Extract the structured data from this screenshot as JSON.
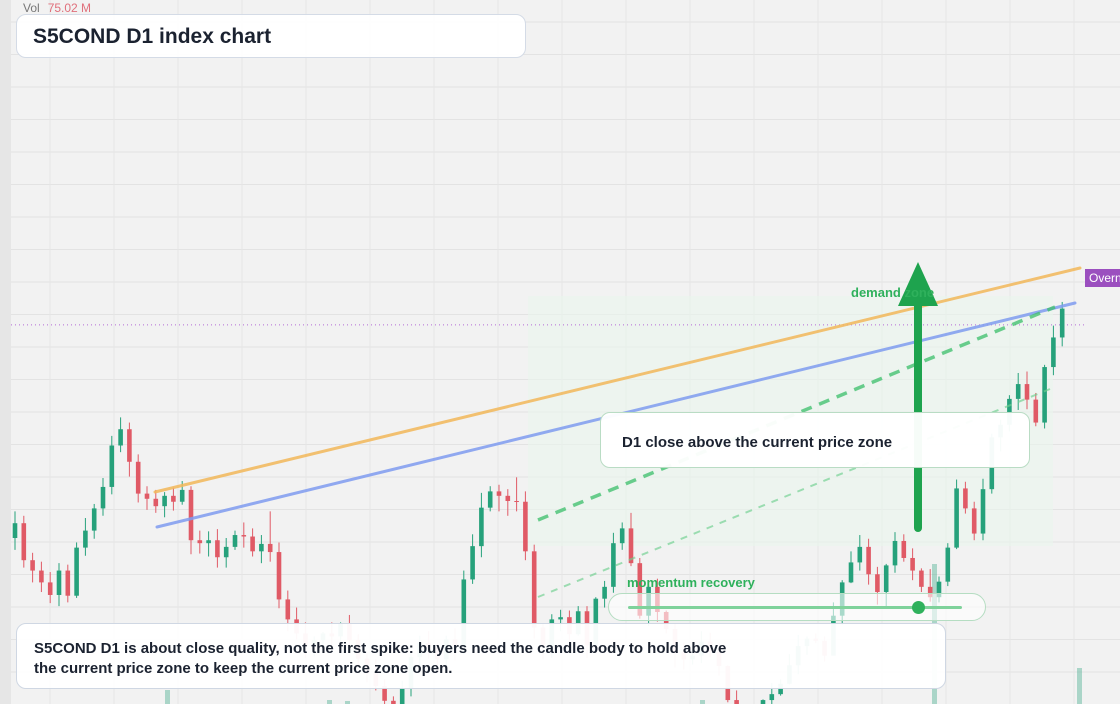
{
  "title": "S5COND D1 index chart",
  "volume": {
    "label": "Vol",
    "value": "75.02 M"
  },
  "price_tag": "Overnight",
  "zone_label": "demand zone",
  "note": "D1 close above the current price zone",
  "momentum": {
    "label": "momentum recovery",
    "level": 0.87
  },
  "summary": "S5COND D1 is about close quality, not the first spike: buyers need the candle body to hold above the current price zone to keep the current price zone open.",
  "colors": {
    "up": "#26a17b",
    "down": "#e05a66",
    "background": "#f2f2f2",
    "ma_fast": "#f2b85a",
    "ma_slow": "#7f9cf0",
    "accent": "#1ea34e",
    "price_line": "#b46bd6"
  },
  "chart_data": {
    "type": "candlestick",
    "timeframe": "D1",
    "x_count": 124,
    "y_range": [
      0,
      100
    ],
    "current_price": 58.8,
    "candles": [
      [
        30.0,
        32.0,
        33.6,
        28.4
      ],
      [
        32.0,
        27.0,
        33.0,
        26.0
      ],
      [
        27.0,
        25.6,
        28.0,
        24.0
      ],
      [
        25.6,
        24.0,
        26.8,
        22.7
      ],
      [
        24.0,
        22.3,
        25.4,
        21.2
      ],
      [
        22.3,
        25.6,
        26.6,
        20.8
      ],
      [
        25.6,
        22.2,
        26.4,
        21.3
      ],
      [
        22.2,
        28.7,
        29.4,
        21.9
      ],
      [
        28.7,
        31.0,
        32.7,
        27.6
      ],
      [
        31.0,
        34.0,
        34.6,
        29.9
      ],
      [
        34.0,
        36.9,
        38.1,
        33.0
      ],
      [
        36.9,
        42.5,
        43.8,
        35.9
      ],
      [
        42.5,
        44.7,
        46.3,
        41.6
      ],
      [
        44.7,
        40.3,
        45.6,
        38.3
      ],
      [
        40.3,
        36.0,
        41.3,
        34.8
      ],
      [
        36.0,
        35.3,
        37.0,
        33.8
      ],
      [
        35.3,
        34.3,
        36.5,
        33.4
      ],
      [
        34.3,
        35.7,
        36.2,
        32.8
      ],
      [
        35.7,
        34.9,
        36.8,
        33.7
      ],
      [
        34.9,
        36.5,
        37.7,
        34.5
      ],
      [
        36.5,
        29.7,
        37.0,
        27.8
      ],
      [
        29.7,
        29.3,
        31.0,
        27.9
      ],
      [
        29.3,
        29.7,
        30.9,
        27.5
      ],
      [
        29.7,
        27.4,
        31.2,
        26.0
      ],
      [
        27.4,
        28.8,
        30.0,
        26.0
      ],
      [
        28.8,
        30.4,
        31.0,
        28.4
      ],
      [
        30.4,
        30.2,
        32.1,
        28.7
      ],
      [
        30.2,
        28.2,
        31.3,
        27.5
      ],
      [
        28.2,
        29.2,
        30.4,
        26.6
      ],
      [
        29.2,
        28.1,
        33.6,
        26.8
      ],
      [
        28.1,
        21.7,
        29.4,
        20.5
      ],
      [
        21.7,
        19.0,
        22.9,
        17.4
      ],
      [
        19.0,
        17.1,
        20.6,
        16.3
      ],
      [
        17.1,
        15.4,
        18.6,
        13.8
      ],
      [
        15.4,
        16.2,
        16.7,
        14.0
      ],
      [
        16.2,
        17.1,
        17.3,
        15.6
      ],
      [
        17.1,
        16.7,
        18.6,
        15.0
      ],
      [
        16.7,
        18.5,
        18.6,
        15.9
      ],
      [
        18.5,
        16.2,
        19.6,
        15.0
      ],
      [
        16.2,
        13.7,
        17.0,
        12.5
      ],
      [
        13.7,
        11.7,
        14.4,
        10.5
      ],
      [
        11.7,
        10.0,
        13.6,
        9.4
      ],
      [
        10.0,
        8.0,
        10.9,
        6.5
      ],
      [
        8.0,
        5.7,
        8.6,
        4.4
      ],
      [
        5.7,
        9.7,
        10.7,
        4.8
      ],
      [
        9.7,
        13.9,
        14.4,
        8.6
      ],
      [
        13.9,
        15.8,
        16.8,
        12.1
      ],
      [
        15.8,
        15.2,
        17.4,
        13.7
      ],
      [
        15.2,
        13.6,
        15.8,
        12.0
      ],
      [
        13.6,
        16.3,
        16.8,
        12.0
      ],
      [
        16.3,
        15.3,
        17.8,
        13.5
      ],
      [
        15.3,
        24.4,
        25.6,
        14.3
      ],
      [
        24.4,
        28.9,
        30.5,
        23.8
      ],
      [
        28.9,
        34.1,
        36.1,
        27.4
      ],
      [
        34.1,
        36.3,
        37.0,
        33.6
      ],
      [
        36.3,
        35.7,
        37.2,
        33.6
      ],
      [
        35.7,
        35.0,
        36.6,
        33.0
      ],
      [
        35.0,
        34.9,
        38.2,
        33.6
      ],
      [
        34.9,
        28.2,
        36.3,
        27.0
      ],
      [
        28.2,
        17.9,
        29.1,
        16.4
      ],
      [
        17.9,
        15.3,
        18.5,
        13.6
      ],
      [
        15.3,
        19.0,
        19.7,
        13.8
      ],
      [
        19.0,
        19.3,
        20.3,
        17.4
      ],
      [
        19.3,
        17.0,
        20.2,
        15.5
      ],
      [
        17.0,
        20.1,
        20.8,
        16.8
      ],
      [
        20.1,
        15.5,
        20.8,
        13.8
      ],
      [
        15.5,
        21.8,
        22.0,
        14.7
      ],
      [
        21.8,
        23.4,
        24.2,
        20.6
      ],
      [
        23.4,
        29.3,
        30.7,
        22.6
      ],
      [
        29.3,
        31.3,
        32.1,
        28.4
      ],
      [
        31.3,
        26.6,
        33.4,
        26.2
      ],
      [
        26.6,
        19.5,
        27.3,
        19.1
      ],
      [
        19.5,
        23.4,
        23.6,
        18.1
      ],
      [
        23.4,
        20.0,
        24.5,
        18.7
      ],
      [
        20.0,
        17.7,
        20.2,
        17.1
      ],
      [
        17.7,
        14.6,
        18.5,
        12.5
      ],
      [
        14.6,
        13.6,
        15.9,
        12.2
      ],
      [
        13.6,
        14.1,
        15.0,
        12.9
      ],
      [
        14.1,
        16.0,
        17.4,
        13.1
      ],
      [
        16.0,
        14.6,
        17.2,
        13.9
      ],
      [
        14.6,
        12.7,
        15.9,
        11.4
      ],
      [
        12.7,
        8.1,
        12.8,
        7.8
      ],
      [
        8.1,
        6.3,
        9.4,
        5.0
      ],
      [
        6.3,
        5.4,
        7.4,
        4.2
      ],
      [
        5.4,
        4.6,
        6.1,
        3.2
      ],
      [
        4.6,
        8.1,
        8.2,
        3.9
      ],
      [
        8.1,
        8.9,
        10.4,
        7.3
      ],
      [
        8.9,
        10.3,
        10.9,
        8.7
      ],
      [
        10.3,
        12.8,
        14.3,
        10.2
      ],
      [
        12.8,
        15.4,
        16.9,
        11.6
      ],
      [
        15.4,
        16.4,
        16.7,
        14.2
      ],
      [
        16.4,
        16.1,
        17.1,
        15.8
      ],
      [
        16.1,
        14.1,
        16.7,
        13.3
      ],
      [
        14.1,
        19.5,
        21.3,
        19.1
      ],
      [
        19.5,
        24.0,
        24.3,
        18.3
      ],
      [
        24.0,
        26.7,
        28.2,
        23.9
      ],
      [
        26.7,
        28.8,
        30.4,
        25.6
      ],
      [
        28.8,
        25.1,
        29.9,
        23.7
      ],
      [
        25.1,
        22.7,
        26.1,
        21.0
      ],
      [
        22.7,
        26.3,
        26.5,
        20.7
      ],
      [
        26.3,
        29.6,
        30.8,
        25.3
      ],
      [
        29.6,
        27.3,
        30.5,
        26.8
      ],
      [
        27.3,
        25.6,
        28.6,
        24.3
      ],
      [
        25.6,
        23.4,
        25.9,
        22.7
      ],
      [
        23.4,
        22.0,
        25.8,
        21.4
      ],
      [
        22.0,
        24.1,
        24.8,
        21.3
      ],
      [
        24.1,
        28.7,
        29.3,
        23.5
      ],
      [
        28.7,
        36.7,
        37.9,
        28.5
      ],
      [
        36.7,
        34.0,
        37.6,
        33.3
      ],
      [
        34.0,
        30.6,
        34.9,
        29.7
      ],
      [
        30.6,
        36.6,
        38.0,
        29.7
      ],
      [
        36.6,
        43.6,
        44.1,
        36.0
      ],
      [
        43.6,
        45.3,
        46.0,
        41.7
      ],
      [
        45.3,
        48.8,
        49.3,
        44.4
      ],
      [
        48.8,
        50.8,
        52.3,
        47.3
      ],
      [
        50.8,
        48.7,
        52.5,
        47.4
      ],
      [
        48.7,
        45.6,
        49.6,
        45.1
      ],
      [
        45.6,
        53.1,
        53.4,
        44.8
      ],
      [
        53.1,
        57.1,
        58.7,
        52.0
      ],
      [
        57.1,
        61.0,
        61.9,
        55.9
      ]
    ]
  }
}
